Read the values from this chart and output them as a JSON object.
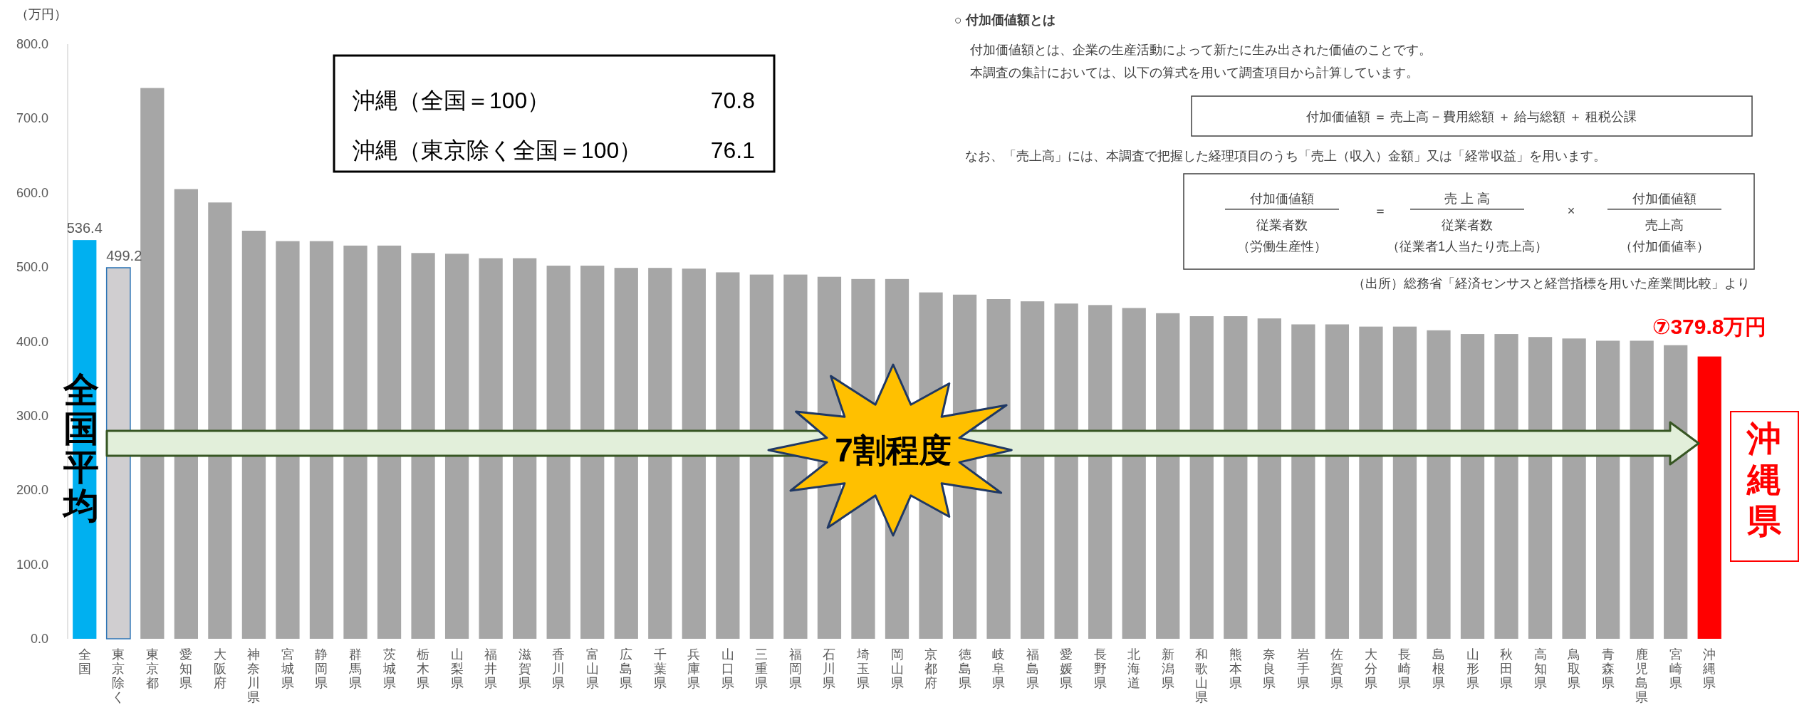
{
  "chart_data": {
    "type": "bar",
    "ylabel": "（万円）",
    "categories": [
      "全国",
      "東京除く",
      "東京都",
      "愛知県",
      "大阪府",
      "神奈川県",
      "宮城県",
      "静岡県",
      "群馬県",
      "茨城県",
      "栃木県",
      "山梨県",
      "福井県",
      "滋賀県",
      "香川県",
      "富山県",
      "広島県",
      "千葉県",
      "兵庫県",
      "山口県",
      "三重県",
      "福岡県",
      "石川県",
      "埼玉県",
      "岡山県",
      "京都府",
      "徳島県",
      "岐阜県",
      "福島県",
      "愛媛県",
      "長野県",
      "北海道",
      "新潟県",
      "和歌山県",
      "熊本県",
      "奈良県",
      "岩手県",
      "佐賀県",
      "大分県",
      "長崎県",
      "島根県",
      "山形県",
      "秋田県",
      "高知県",
      "鳥取県",
      "青森県",
      "鹿児島県",
      "宮崎県",
      "沖縄県"
    ],
    "values": [
      536.4,
      499.2,
      741,
      605,
      587,
      549,
      535,
      535,
      529,
      529,
      519,
      518,
      512,
      512,
      502,
      502,
      499,
      499,
      498,
      493,
      490,
      490,
      487,
      484,
      484,
      466,
      463,
      457,
      454,
      451,
      449,
      445,
      438,
      434,
      434,
      431,
      423,
      423,
      420,
      420,
      415,
      410,
      410,
      406,
      404,
      401,
      401,
      395,
      379.8
    ],
    "colors": [
      "#00b0f0",
      "#d0ced0",
      "#a6a6a6",
      "#a6a6a6",
      "#a6a6a6",
      "#a6a6a6",
      "#a6a6a6",
      "#a6a6a6",
      "#a6a6a6",
      "#a6a6a6",
      "#a6a6a6",
      "#a6a6a6",
      "#a6a6a6",
      "#a6a6a6",
      "#a6a6a6",
      "#a6a6a6",
      "#a6a6a6",
      "#a6a6a6",
      "#a6a6a6",
      "#a6a6a6",
      "#a6a6a6",
      "#a6a6a6",
      "#a6a6a6",
      "#a6a6a6",
      "#a6a6a6",
      "#a6a6a6",
      "#a6a6a6",
      "#a6a6a6",
      "#a6a6a6",
      "#a6a6a6",
      "#a6a6a6",
      "#a6a6a6",
      "#a6a6a6",
      "#a6a6a6",
      "#a6a6a6",
      "#a6a6a6",
      "#a6a6a6",
      "#a6a6a6",
      "#a6a6a6",
      "#a6a6a6",
      "#a6a6a6",
      "#a6a6a6",
      "#a6a6a6",
      "#a6a6a6",
      "#a6a6a6",
      "#a6a6a6",
      "#a6a6a6",
      "#a6a6a6",
      "#ff0000"
    ],
    "value_labels": [
      "536.4",
      "499.2",
      null,
      null,
      null,
      null,
      null,
      null,
      null,
      null,
      null,
      null,
      null,
      null,
      null,
      null,
      null,
      null,
      null,
      null,
      null,
      null,
      null,
      null,
      null,
      null,
      null,
      null,
      null,
      null,
      null,
      null,
      null,
      null,
      null,
      null,
      null,
      null,
      null,
      null,
      null,
      null,
      null,
      null,
      null,
      null,
      null,
      null,
      "⑦379.8万円"
    ],
    "ylim": [
      0,
      800
    ],
    "yticks": [
      {
        "value": 0,
        "label": "0.0"
      },
      {
        "value": 100,
        "label": "100.0"
      },
      {
        "value": 200,
        "label": "200.0"
      },
      {
        "value": 300,
        "label": "300.0"
      },
      {
        "value": 400,
        "label": "400.0"
      },
      {
        "value": 500,
        "label": "500.0"
      },
      {
        "value": 600,
        "label": "600.0"
      },
      {
        "value": 700,
        "label": "700.0"
      },
      {
        "value": 800,
        "label": "800.0"
      }
    ],
    "grid": false,
    "annotations": [
      "沖縄（全国＝100）",
      "70.8",
      "沖縄（東京除く全国＝100）",
      "76.1",
      "7割程度",
      "全国平均",
      "沖縄県",
      "○ 付加価値額とは",
      "付加価値額とは、企業の生産活動によって新たに生み出された価値のことです。",
      "本調査の集計においては、以下の算式を用いて調査項目から計算しています。",
      "付加価値額 ＝ 売上高 − 費用総額 ＋ 給与総額 ＋ 租税公課",
      "なお、「売上高」には、本調査で把握した経理項目のうち「売上（収入）金額」又は「経常収益」を用います。",
      "付加価値額",
      "従業者数",
      "（労働生産性）",
      "＝",
      "売 上 高",
      "従業者数",
      "（従業者1人当たり売上高）",
      "×",
      "付加価値額",
      "売上高",
      "（付加価値率）",
      "（出所）総務省「経済センサスと経営指標を用いた産業間比較」より"
    ]
  }
}
